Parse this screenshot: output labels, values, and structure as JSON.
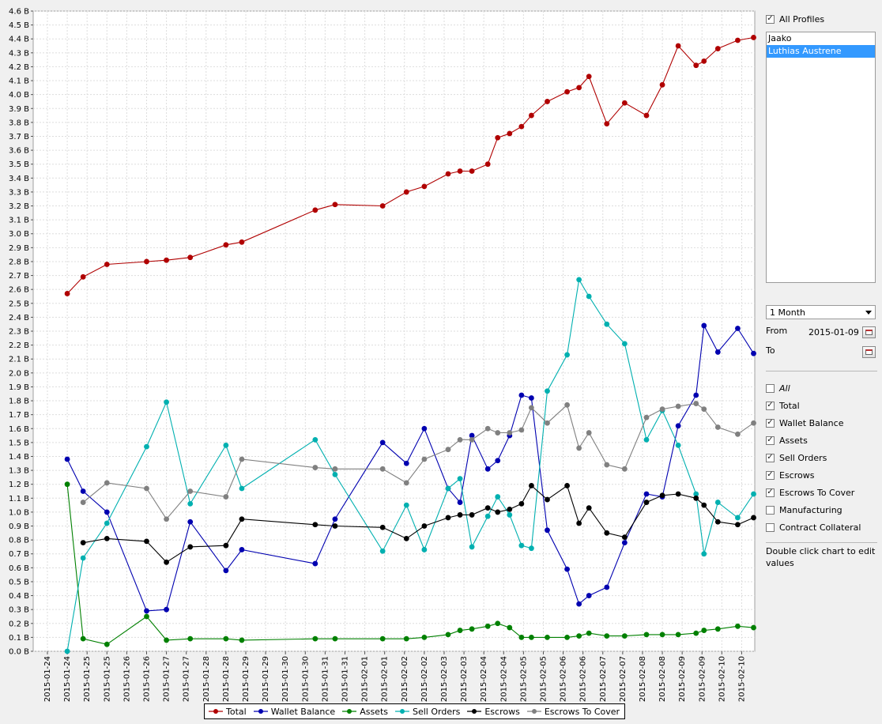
{
  "sidebar": {
    "all_profiles_label": "All Profiles",
    "profiles": [
      {
        "name": "Jaako",
        "selected": false
      },
      {
        "name": "Luthias Austrene",
        "selected": true
      }
    ],
    "range_value": "1 Month",
    "from_label": "From",
    "from_value": "2015-01-09",
    "to_label": "To",
    "to_value": "",
    "series_checks": [
      {
        "label": "All",
        "checked": false,
        "italic": true
      },
      {
        "label": "Total",
        "checked": true
      },
      {
        "label": "Wallet Balance",
        "checked": true
      },
      {
        "label": "Assets",
        "checked": true
      },
      {
        "label": "Sell Orders",
        "checked": true
      },
      {
        "label": "Escrows",
        "checked": true
      },
      {
        "label": "Escrows To Cover",
        "checked": true
      },
      {
        "label": "Manufacturing",
        "checked": false
      },
      {
        "label": "Contract Collateral",
        "checked": false
      }
    ],
    "hint": "Double click chart to edit values"
  },
  "chart_data": {
    "type": "line",
    "ylim": [
      0.0,
      4.6
    ],
    "y_unit": "B",
    "y_ticks": [
      "0.0 B",
      "0.1 B",
      "0.2 B",
      "0.3 B",
      "0.4 B",
      "0.5 B",
      "0.6 B",
      "0.7 B",
      "0.8 B",
      "0.9 B",
      "1.0 B",
      "1.1 B",
      "1.2 B",
      "1.3 B",
      "1.4 B",
      "1.5 B",
      "1.6 B",
      "1.7 B",
      "1.8 B",
      "1.9 B",
      "2.0 B",
      "2.1 B",
      "2.2 B",
      "2.3 B",
      "2.4 B",
      "2.5 B",
      "2.6 B",
      "2.7 B",
      "2.8 B",
      "2.9 B",
      "3.0 B",
      "3.1 B",
      "3.2 B",
      "3.3 B",
      "3.4 B",
      "3.5 B",
      "3.6 B",
      "3.7 B",
      "3.8 B",
      "3.9 B",
      "4.0 B",
      "4.1 B",
      "4.2 B",
      "4.3 B",
      "4.4 B",
      "4.5 B",
      "4.6 B"
    ],
    "x_ticks": [
      "2015-01-24",
      "2015-01-24",
      "2015-01-25",
      "2015-01-25",
      "2015-01-26",
      "2015-01-26",
      "2015-01-27",
      "2015-01-27",
      "2015-01-28",
      "2015-01-28",
      "2015-01-29",
      "2015-01-29",
      "2015-01-30",
      "2015-01-30",
      "2015-01-31",
      "2015-01-31",
      "2015-02-01",
      "2015-02-01",
      "2015-02-02",
      "2015-02-02",
      "2015-02-03",
      "2015-02-03",
      "2015-02-04",
      "2015-02-04",
      "2015-02-05",
      "2015-02-05",
      "2015-02-06",
      "2015-02-06",
      "2015-02-07",
      "2015-02-07",
      "2015-02-08",
      "2015-02-08",
      "2015-02-09",
      "2015-02-09",
      "2015-02-10",
      "2015-02-10"
    ],
    "x_tick_range": [
      -1,
      34
    ],
    "grid": true,
    "legend_position": "bottom-center",
    "series": [
      {
        "name": "Total",
        "color": "#b00000",
        "x": [
          0,
          0.8,
          2,
          4,
          5,
          6.2,
          8,
          8.8,
          12.5,
          13.5,
          15.9,
          17.1,
          18,
          19.2,
          19.8,
          20.4,
          21.2,
          21.7,
          22.3,
          22.9,
          23.4,
          24.2,
          25.2,
          25.8,
          26.3,
          27.2,
          28.1,
          29.2,
          30,
          30.8,
          31.7,
          32.1,
          32.8,
          33.8,
          34.6
        ],
        "y": [
          2.57,
          2.69,
          2.78,
          2.8,
          2.81,
          2.83,
          2.92,
          2.94,
          3.17,
          3.21,
          3.2,
          3.3,
          3.34,
          3.43,
          3.45,
          3.45,
          3.5,
          3.69,
          3.72,
          3.77,
          3.85,
          3.95,
          4.02,
          4.05,
          4.13,
          3.79,
          3.94,
          3.85,
          4.07,
          4.35,
          4.21,
          4.24,
          4.33,
          4.39,
          4.41
        ]
      },
      {
        "name": "Wallet Balance",
        "color": "#0000b0",
        "x": [
          0,
          0.8,
          2,
          4,
          5,
          6.2,
          8,
          8.8,
          12.5,
          13.5,
          15.9,
          17.1,
          18,
          19.2,
          19.8,
          20.4,
          21.2,
          21.7,
          22.3,
          22.9,
          23.4,
          24.2,
          25.2,
          25.8,
          26.3,
          27.2,
          28.1,
          29.2,
          30,
          30.8,
          31.7,
          32.1,
          32.8,
          33.8,
          34.6
        ],
        "y": [
          1.38,
          1.15,
          1.0,
          0.29,
          0.3,
          0.93,
          0.58,
          0.73,
          0.63,
          0.95,
          1.5,
          1.35,
          1.6,
          1.17,
          1.07,
          1.55,
          1.31,
          1.37,
          1.55,
          1.84,
          1.82,
          0.87,
          0.59,
          0.34,
          0.4,
          0.46,
          0.78,
          1.13,
          1.11,
          1.62,
          1.84,
          2.34,
          2.15,
          2.32,
          2.14
        ]
      },
      {
        "name": "Assets",
        "color": "#008000",
        "x": [
          0,
          0.8,
          2,
          4,
          5,
          6.2,
          8,
          8.8,
          12.5,
          13.5,
          15.9,
          17.1,
          18,
          19.2,
          19.8,
          20.4,
          21.2,
          21.7,
          22.3,
          22.9,
          23.4,
          24.2,
          25.2,
          25.8,
          26.3,
          27.2,
          28.1,
          29.2,
          30,
          30.8,
          31.7,
          32.1,
          32.8,
          33.8,
          34.6
        ],
        "y": [
          1.2,
          0.09,
          0.05,
          0.25,
          0.08,
          0.09,
          0.09,
          0.08,
          0.09,
          0.09,
          0.09,
          0.09,
          0.1,
          0.12,
          0.15,
          0.16,
          0.18,
          0.2,
          0.17,
          0.1,
          0.1,
          0.1,
          0.1,
          0.11,
          0.13,
          0.11,
          0.11,
          0.12,
          0.12,
          0.12,
          0.13,
          0.15,
          0.16,
          0.18,
          0.17
        ]
      },
      {
        "name": "Sell Orders",
        "color": "#00b0b0",
        "x": [
          0,
          0.8,
          2,
          4,
          5,
          6.2,
          8,
          8.8,
          12.5,
          13.5,
          15.9,
          17.1,
          18,
          19.2,
          19.8,
          20.4,
          21.2,
          21.7,
          22.3,
          22.9,
          23.4,
          24.2,
          25.2,
          25.8,
          26.3,
          27.2,
          28.1,
          29.2,
          30,
          30.8,
          31.7,
          32.1,
          32.8,
          33.8,
          34.6
        ],
        "y": [
          0.0,
          0.67,
          0.92,
          1.47,
          1.79,
          1.06,
          1.48,
          1.17,
          1.52,
          1.27,
          0.72,
          1.05,
          0.73,
          1.17,
          1.24,
          0.75,
          0.97,
          1.11,
          0.98,
          0.76,
          0.74,
          1.87,
          2.13,
          2.67,
          2.55,
          2.35,
          2.21,
          1.52,
          1.73,
          1.48,
          1.13,
          0.7,
          1.07,
          0.96,
          1.13
        ]
      },
      {
        "name": "Escrows",
        "color": "#000000",
        "x": [
          0.8,
          2,
          4,
          5,
          6.2,
          8,
          8.8,
          12.5,
          13.5,
          15.9,
          17.1,
          18,
          19.2,
          19.8,
          20.4,
          21.2,
          21.7,
          22.3,
          22.9,
          23.4,
          24.2,
          25.2,
          25.8,
          26.3,
          27.2,
          28.1,
          29.2,
          30,
          30.8,
          31.7,
          32.1,
          32.8,
          33.8,
          34.6
        ],
        "y": [
          0.78,
          0.81,
          0.79,
          0.64,
          0.75,
          0.76,
          0.95,
          0.91,
          0.9,
          0.89,
          0.81,
          0.9,
          0.96,
          0.98,
          0.98,
          1.03,
          1.0,
          1.02,
          1.06,
          1.19,
          1.09,
          1.19,
          0.92,
          1.03,
          0.85,
          0.82,
          1.07,
          1.12,
          1.13,
          1.1,
          1.05,
          0.93,
          0.91,
          0.96
        ]
      },
      {
        "name": "Escrows To Cover",
        "color": "#808080",
        "x": [
          0.8,
          2,
          4,
          5,
          6.2,
          8,
          8.8,
          12.5,
          13.5,
          15.9,
          17.1,
          18,
          19.2,
          19.8,
          20.4,
          21.2,
          21.7,
          22.3,
          22.9,
          23.4,
          24.2,
          25.2,
          25.8,
          26.3,
          27.2,
          28.1,
          29.2,
          30,
          30.8,
          31.7,
          32.1,
          32.8,
          33.8,
          34.6
        ],
        "y": [
          1.07,
          1.21,
          1.17,
          0.95,
          1.15,
          1.11,
          1.38,
          1.32,
          1.31,
          1.31,
          1.21,
          1.38,
          1.45,
          1.52,
          1.52,
          1.6,
          1.57,
          1.57,
          1.59,
          1.75,
          1.64,
          1.77,
          1.46,
          1.57,
          1.34,
          1.31,
          1.68,
          1.74,
          1.76,
          1.78,
          1.74,
          1.61,
          1.56,
          1.64
        ]
      }
    ]
  }
}
